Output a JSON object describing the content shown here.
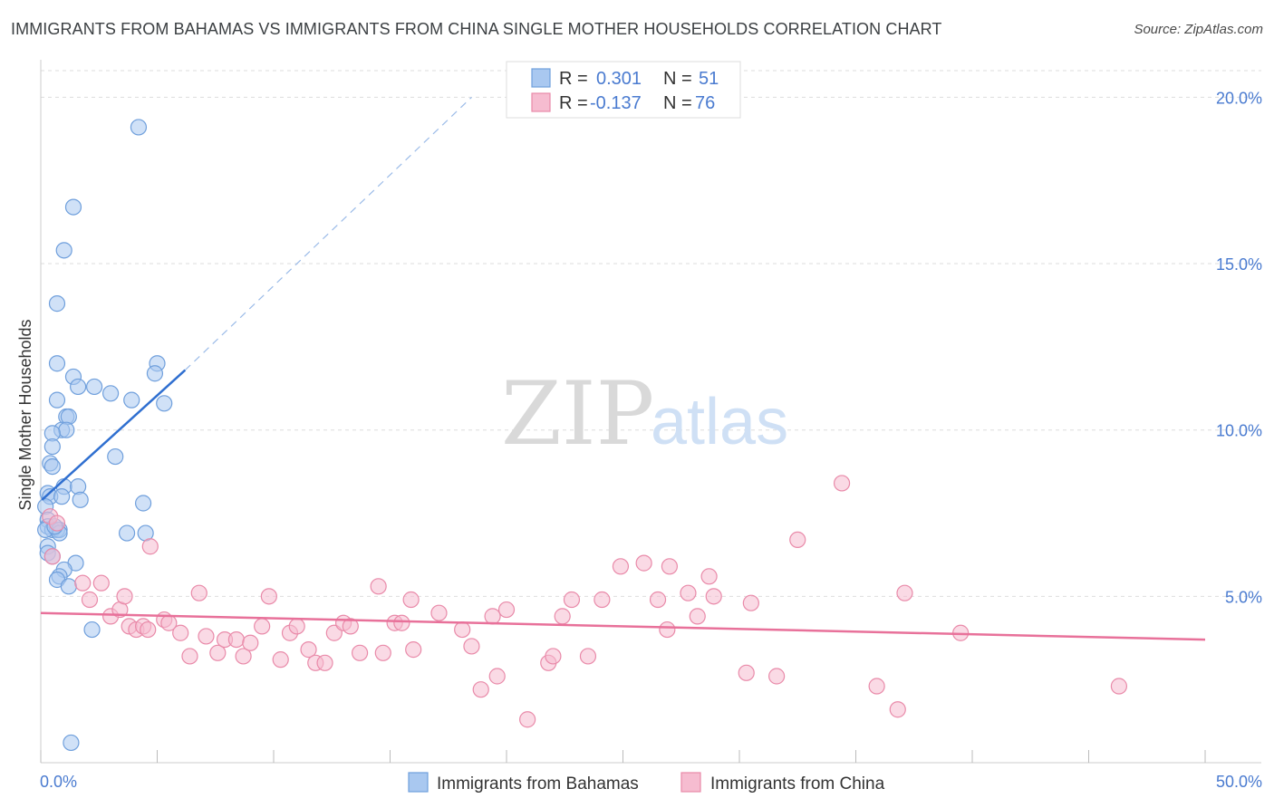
{
  "title": "IMMIGRANTS FROM BAHAMAS VS IMMIGRANTS FROM CHINA SINGLE MOTHER HOUSEHOLDS CORRELATION CHART",
  "source": "Source: ZipAtlas.com",
  "watermark": {
    "zip": "ZIP",
    "atlas": "atlas"
  },
  "colors": {
    "blue_fill": "#a9c8f0",
    "blue_stroke": "#6f9fdc",
    "blue_line": "#2f6fd0",
    "pink_fill": "#f6bcd0",
    "pink_stroke": "#e98aa9",
    "pink_line": "#e8719a",
    "grid": "#dddddd",
    "axis_label": "#4a7bd0"
  },
  "legend": {
    "rows": [
      {
        "r_label": "R =",
        "r_value": "0.301",
        "n_label": "N =",
        "n_value": "51"
      },
      {
        "r_label": "R =",
        "r_value": "-0.137",
        "n_label": "N =",
        "n_value": "76"
      }
    ]
  },
  "chart_data": {
    "type": "scatter",
    "title": "IMMIGRANTS FROM BAHAMAS VS IMMIGRANTS FROM CHINA SINGLE MOTHER HOUSEHOLDS CORRELATION CHART",
    "xlabel": "",
    "ylabel": "Single Mother Households",
    "xlim": [
      0,
      50
    ],
    "ylim": [
      0,
      20.8
    ],
    "x_tick_labels": [
      "0.0%",
      "50.0%"
    ],
    "y_ticks": [
      5,
      10,
      15,
      20
    ],
    "y_tick_labels": [
      "5.0%",
      "10.0%",
      "15.0%",
      "20.0%"
    ],
    "grid": true,
    "legend_position": "top-center",
    "series": [
      {
        "name": "Immigrants from Bahamas",
        "r": 0.301,
        "n": 51,
        "trend": {
          "x": [
            0.05,
            6.2
          ],
          "y": [
            7.9,
            11.8
          ],
          "dashed_extension_to": [
            18.5,
            20.0
          ]
        },
        "points": [
          [
            4.2,
            19.1
          ],
          [
            1.4,
            16.7
          ],
          [
            1.0,
            15.4
          ],
          [
            0.7,
            13.8
          ],
          [
            0.7,
            12.0
          ],
          [
            1.4,
            11.6
          ],
          [
            1.6,
            11.3
          ],
          [
            2.3,
            11.3
          ],
          [
            3.0,
            11.1
          ],
          [
            5.0,
            12.0
          ],
          [
            4.9,
            11.7
          ],
          [
            0.7,
            10.9
          ],
          [
            3.9,
            10.9
          ],
          [
            5.3,
            10.8
          ],
          [
            1.1,
            10.4
          ],
          [
            1.2,
            10.4
          ],
          [
            0.9,
            10.0
          ],
          [
            1.1,
            10.0
          ],
          [
            0.5,
            9.9
          ],
          [
            0.5,
            9.5
          ],
          [
            3.2,
            9.2
          ],
          [
            0.4,
            9.0
          ],
          [
            0.5,
            8.9
          ],
          [
            1.0,
            8.3
          ],
          [
            1.6,
            8.3
          ],
          [
            0.3,
            8.1
          ],
          [
            0.4,
            8.0
          ],
          [
            0.9,
            8.0
          ],
          [
            1.7,
            7.9
          ],
          [
            4.4,
            7.8
          ],
          [
            0.2,
            7.7
          ],
          [
            0.3,
            7.3
          ],
          [
            0.3,
            7.1
          ],
          [
            0.5,
            7.0
          ],
          [
            0.7,
            7.0
          ],
          [
            0.8,
            7.0
          ],
          [
            0.8,
            6.9
          ],
          [
            3.7,
            6.9
          ],
          [
            4.5,
            6.9
          ],
          [
            0.3,
            6.5
          ],
          [
            0.3,
            6.3
          ],
          [
            0.5,
            6.2
          ],
          [
            1.5,
            6.0
          ],
          [
            1.0,
            5.8
          ],
          [
            0.8,
            5.6
          ],
          [
            0.7,
            5.5
          ],
          [
            1.2,
            5.3
          ],
          [
            2.2,
            4.0
          ],
          [
            1.3,
            0.6
          ],
          [
            0.2,
            7.0
          ],
          [
            0.6,
            7.1
          ]
        ]
      },
      {
        "name": "Immigrants from China",
        "r": -0.137,
        "n": 76,
        "trend": {
          "x": [
            0,
            50
          ],
          "y": [
            4.5,
            3.7
          ]
        },
        "points": [
          [
            0.4,
            7.4
          ],
          [
            0.5,
            6.2
          ],
          [
            1.8,
            5.4
          ],
          [
            2.1,
            4.9
          ],
          [
            3.0,
            4.4
          ],
          [
            3.4,
            4.6
          ],
          [
            3.6,
            5.0
          ],
          [
            3.8,
            4.1
          ],
          [
            4.1,
            4.0
          ],
          [
            4.4,
            4.1
          ],
          [
            4.6,
            4.0
          ],
          [
            4.7,
            6.5
          ],
          [
            5.3,
            4.3
          ],
          [
            5.5,
            4.2
          ],
          [
            6.0,
            3.9
          ],
          [
            6.4,
            3.2
          ],
          [
            6.8,
            5.1
          ],
          [
            7.1,
            3.8
          ],
          [
            7.6,
            3.3
          ],
          [
            7.9,
            3.7
          ],
          [
            8.4,
            3.7
          ],
          [
            8.7,
            3.2
          ],
          [
            9.0,
            3.6
          ],
          [
            9.5,
            4.1
          ],
          [
            9.8,
            5.0
          ],
          [
            10.3,
            3.1
          ],
          [
            10.7,
            3.9
          ],
          [
            11.0,
            4.1
          ],
          [
            11.5,
            3.4
          ],
          [
            11.8,
            3.0
          ],
          [
            12.2,
            3.0
          ],
          [
            12.6,
            3.9
          ],
          [
            13.0,
            4.2
          ],
          [
            13.3,
            4.1
          ],
          [
            13.7,
            3.3
          ],
          [
            14.5,
            5.3
          ],
          [
            14.7,
            3.3
          ],
          [
            15.2,
            4.2
          ],
          [
            15.5,
            4.2
          ],
          [
            15.9,
            4.9
          ],
          [
            16.0,
            3.4
          ],
          [
            17.1,
            4.5
          ],
          [
            18.1,
            4.0
          ],
          [
            18.5,
            3.5
          ],
          [
            18.9,
            2.2
          ],
          [
            19.4,
            4.4
          ],
          [
            19.6,
            2.6
          ],
          [
            20.0,
            4.6
          ],
          [
            20.9,
            1.3
          ],
          [
            21.8,
            3.0
          ],
          [
            22.0,
            3.2
          ],
          [
            22.4,
            4.4
          ],
          [
            22.8,
            4.9
          ],
          [
            23.5,
            3.2
          ],
          [
            24.1,
            4.9
          ],
          [
            24.9,
            5.9
          ],
          [
            25.9,
            6.0
          ],
          [
            26.5,
            4.9
          ],
          [
            26.9,
            4.0
          ],
          [
            27.0,
            5.9
          ],
          [
            27.8,
            5.1
          ],
          [
            28.2,
            4.4
          ],
          [
            28.7,
            5.6
          ],
          [
            28.9,
            5.0
          ],
          [
            30.3,
            2.7
          ],
          [
            30.5,
            4.8
          ],
          [
            31.6,
            2.6
          ],
          [
            32.5,
            6.7
          ],
          [
            34.4,
            8.4
          ],
          [
            35.9,
            2.3
          ],
          [
            36.8,
            1.6
          ],
          [
            37.1,
            5.1
          ],
          [
            39.5,
            3.9
          ],
          [
            46.3,
            2.3
          ],
          [
            0.7,
            7.2
          ],
          [
            2.6,
            5.4
          ]
        ]
      }
    ]
  },
  "bottom_legend": [
    "Immigrants from Bahamas",
    "Immigrants from China"
  ]
}
